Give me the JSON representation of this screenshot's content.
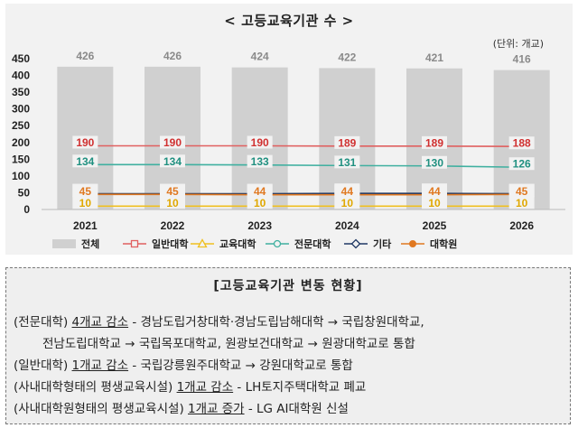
{
  "chart_data": {
    "type": "bar",
    "title": "< 고등교육기관 수 >",
    "unit": "(단위: 개교)",
    "categories": [
      "2021",
      "2022",
      "2023",
      "2024",
      "2025",
      "2026"
    ],
    "ylim": [
      0,
      450
    ],
    "yticks": [
      0,
      50,
      100,
      150,
      200,
      250,
      300,
      350,
      400,
      450
    ],
    "legend_position": "bottom",
    "series": [
      {
        "name": "전체",
        "kind": "bar",
        "color": "#d0d0d0",
        "label_color": "#8a8a8a",
        "marker": "square",
        "values": [
          426,
          426,
          424,
          422,
          421,
          416
        ]
      },
      {
        "name": "일반대학",
        "kind": "line",
        "color": "#e06060",
        "label_color": "#d03030",
        "marker": "square-open",
        "values": [
          190,
          190,
          190,
          189,
          189,
          188
        ]
      },
      {
        "name": "교육대학",
        "kind": "line",
        "color": "#f0c020",
        "label_color": "#e0a800",
        "marker": "triangle-open",
        "values": [
          10,
          10,
          10,
          10,
          10,
          10
        ]
      },
      {
        "name": "전문대학",
        "kind": "line",
        "color": "#40b0a0",
        "label_color": "#209080",
        "marker": "circle-open",
        "values": [
          134,
          134,
          133,
          131,
          130,
          126
        ]
      },
      {
        "name": "기타",
        "kind": "line",
        "color": "#1f3864",
        "label_color": "#1f3864",
        "marker": "diamond-open",
        "values": [
          47,
          47,
          47,
          48,
          48,
          47
        ]
      },
      {
        "name": "대학원",
        "kind": "line",
        "color": "#e07820",
        "label_color": "#e07820",
        "marker": "circle-filled",
        "values": [
          45,
          45,
          44,
          44,
          44,
          45
        ]
      }
    ]
  },
  "info": {
    "title": "[고등교육기관 변동 현황]",
    "line1": {
      "prefix": "(전문대학) ",
      "u": "4개교 감소",
      "rest": " - 경남도립거창대학·경남도립남해대학 → 국립창원대학교,"
    },
    "line2": {
      "text": "전남도립대학교 → 국립목포대학교, 원광보건대학교 → 원광대학교로 통합"
    },
    "line3": {
      "prefix": "(일반대학) ",
      "u": "1개교 감소",
      "rest": " - 국립강릉원주대학교 → 강원대학교로 통합"
    },
    "line4": {
      "prefix": "(사내대학형태의 평생교육시설) ",
      "u": "1개교 감소",
      "rest": " - LH토지주택대학교 폐교"
    },
    "line5": {
      "prefix": "(사내대학원형태의 평생교육시설) ",
      "u": "1개교 증가",
      "rest": " - LG AI대학원 신설"
    }
  }
}
